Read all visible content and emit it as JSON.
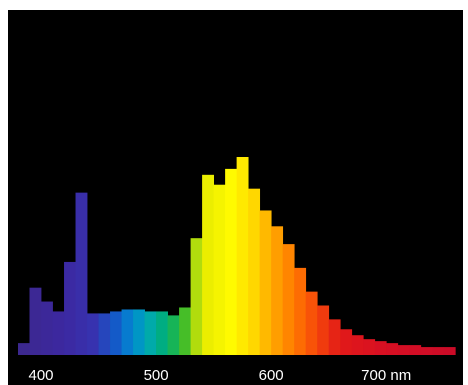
{
  "chart_data": {
    "type": "bar",
    "title": "",
    "xlabel": "",
    "ylabel": "",
    "x_unit": "nm",
    "x_range": [
      380,
      765
    ],
    "y_range": [
      0,
      100
    ],
    "grid": false,
    "legend": "none",
    "background_color": "#000000",
    "tick_label_color": "#ffffff",
    "x_ticks": [
      {
        "value": 400,
        "label": "400"
      },
      {
        "value": 500,
        "label": "500"
      },
      {
        "value": 600,
        "label": "600"
      },
      {
        "value": 700,
        "label": "700 nm"
      }
    ],
    "bin_width_nm": 10,
    "series": [
      {
        "x": [
          385,
          395,
          405,
          415,
          425,
          435,
          445,
          455,
          465,
          475,
          485,
          495,
          505,
          515,
          525,
          535,
          545,
          555,
          565,
          575,
          585,
          595,
          605,
          615,
          625,
          635,
          645,
          655,
          665,
          675,
          685,
          695,
          705,
          715,
          725,
          735,
          745,
          755
        ],
        "values": [
          6,
          34,
          27,
          22,
          47,
          82,
          21,
          21,
          22,
          23,
          23,
          22,
          22,
          20,
          24,
          59,
          91,
          86,
          94,
          100,
          84,
          73,
          65,
          56,
          44,
          32,
          25,
          18,
          13,
          10,
          8,
          7,
          6,
          5,
          5,
          4,
          4,
          4
        ]
      }
    ]
  }
}
